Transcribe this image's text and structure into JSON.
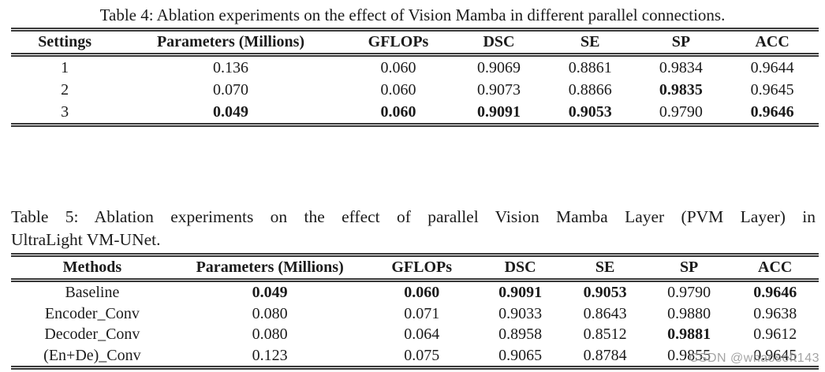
{
  "page": {
    "background": "#ffffff",
    "text_color": "#1b1b1b",
    "rule_color": "#383838",
    "watermark_color": "#949494"
  },
  "table4": {
    "caption": "Table 4: Ablation experiments on the effect of Vision Mamba in different parallel connections.",
    "headers": [
      "Settings",
      "Parameters (Millions)",
      "GFLOPs",
      "DSC",
      "SE",
      "SP",
      "ACC"
    ],
    "rows": [
      {
        "cells": [
          "1",
          "0.136",
          "0.060",
          "0.9069",
          "0.8861",
          "0.9834",
          "0.9644"
        ],
        "bold": [
          false,
          false,
          false,
          false,
          false,
          false,
          false
        ]
      },
      {
        "cells": [
          "2",
          "0.070",
          "0.060",
          "0.9073",
          "0.8866",
          "0.9835",
          "0.9645"
        ],
        "bold": [
          false,
          false,
          false,
          false,
          false,
          true,
          false
        ]
      },
      {
        "cells": [
          "3",
          "0.049",
          "0.060",
          "0.9091",
          "0.9053",
          "0.9790",
          "0.9646"
        ],
        "bold": [
          false,
          true,
          true,
          true,
          true,
          false,
          true
        ]
      }
    ]
  },
  "table5": {
    "caption_line1": "Table 5: Ablation experiments on the effect of parallel Vision Mamba Layer (PVM Layer) in",
    "caption_line2": "UltraLight VM-UNet.",
    "headers": [
      "Methods",
      "Parameters (Millions)",
      "GFLOPs",
      "DSC",
      "SE",
      "SP",
      "ACC"
    ],
    "rows": [
      {
        "cells": [
          "Baseline",
          "0.049",
          "0.060",
          "0.9091",
          "0.9053",
          "0.9790",
          "0.9646"
        ],
        "bold": [
          false,
          true,
          true,
          true,
          true,
          false,
          true
        ]
      },
      {
        "cells": [
          "Encoder_Conv",
          "0.080",
          "0.071",
          "0.9033",
          "0.8643",
          "0.9880",
          "0.9638"
        ],
        "bold": [
          false,
          false,
          false,
          false,
          false,
          false,
          false
        ]
      },
      {
        "cells": [
          "Decoder_Conv",
          "0.080",
          "0.064",
          "0.8958",
          "0.8512",
          "0.9881",
          "0.9612"
        ],
        "bold": [
          false,
          false,
          false,
          false,
          false,
          true,
          false
        ]
      },
      {
        "cells": [
          "(En+De)_Conv",
          "0.123",
          "0.075",
          "0.9065",
          "0.8784",
          "0.9855",
          "0.9645"
        ],
        "bold": [
          false,
          false,
          false,
          false,
          false,
          false,
          false
        ]
      }
    ]
  },
  "watermark": {
    "text": "CSDN @whaosoft143"
  }
}
